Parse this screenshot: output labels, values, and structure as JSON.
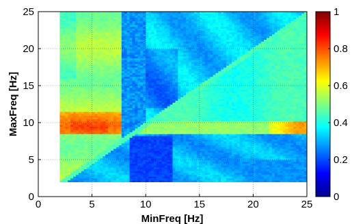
{
  "chart_data": {
    "type": "heatmap",
    "title": "",
    "xlabel": "MinFreq [Hz]",
    "ylabel": "MaxFreq [Hz]",
    "xlim": [
      0,
      25
    ],
    "ylim": [
      0,
      25
    ],
    "xticks": [
      "0",
      "5",
      "10",
      "15",
      "20",
      "25"
    ],
    "yticks": [
      "0",
      "5",
      "10",
      "15",
      "20",
      "25"
    ],
    "grid": true,
    "colormap": "jet",
    "colorbar": {
      "range": [
        0,
        1
      ],
      "ticks": [
        "0",
        "0.2",
        "0.4",
        "0.6",
        "0.8",
        "1"
      ],
      "placement": "right"
    },
    "cells": {
      "x_range_hz": [
        2,
        25
      ],
      "y_range_hz": [
        2,
        25
      ],
      "diagonal": "x = y",
      "upper_triangle_description": "values for MinFreq < MaxFreq",
      "lower_triangle_description": "values for MinFreq > MaxFreq",
      "value_profile": [
        {
          "region": "upper, MinFreq 2-8, MaxFreq 9-11",
          "value": 0.75
        },
        {
          "region": "upper, MinFreq 2-8, MaxFreq 11-25",
          "value": 0.55
        },
        {
          "region": "upper, MinFreq 8-10, MaxFreq 10-25",
          "value": 0.25
        },
        {
          "region": "upper, MinFreq 10-25",
          "value": 0.33
        },
        {
          "region": "lower, MaxFreq 8.5-10",
          "value": 0.55
        },
        {
          "region": "lower, MaxFreq 2-8",
          "value": 0.32
        },
        {
          "region": "lower, MinFreq 22-25, MaxFreq 9-10",
          "value": 0.7
        },
        {
          "region": "lower, MinFreq 9-12, MaxFreq 3-8",
          "value": 0.2
        }
      ]
    }
  }
}
